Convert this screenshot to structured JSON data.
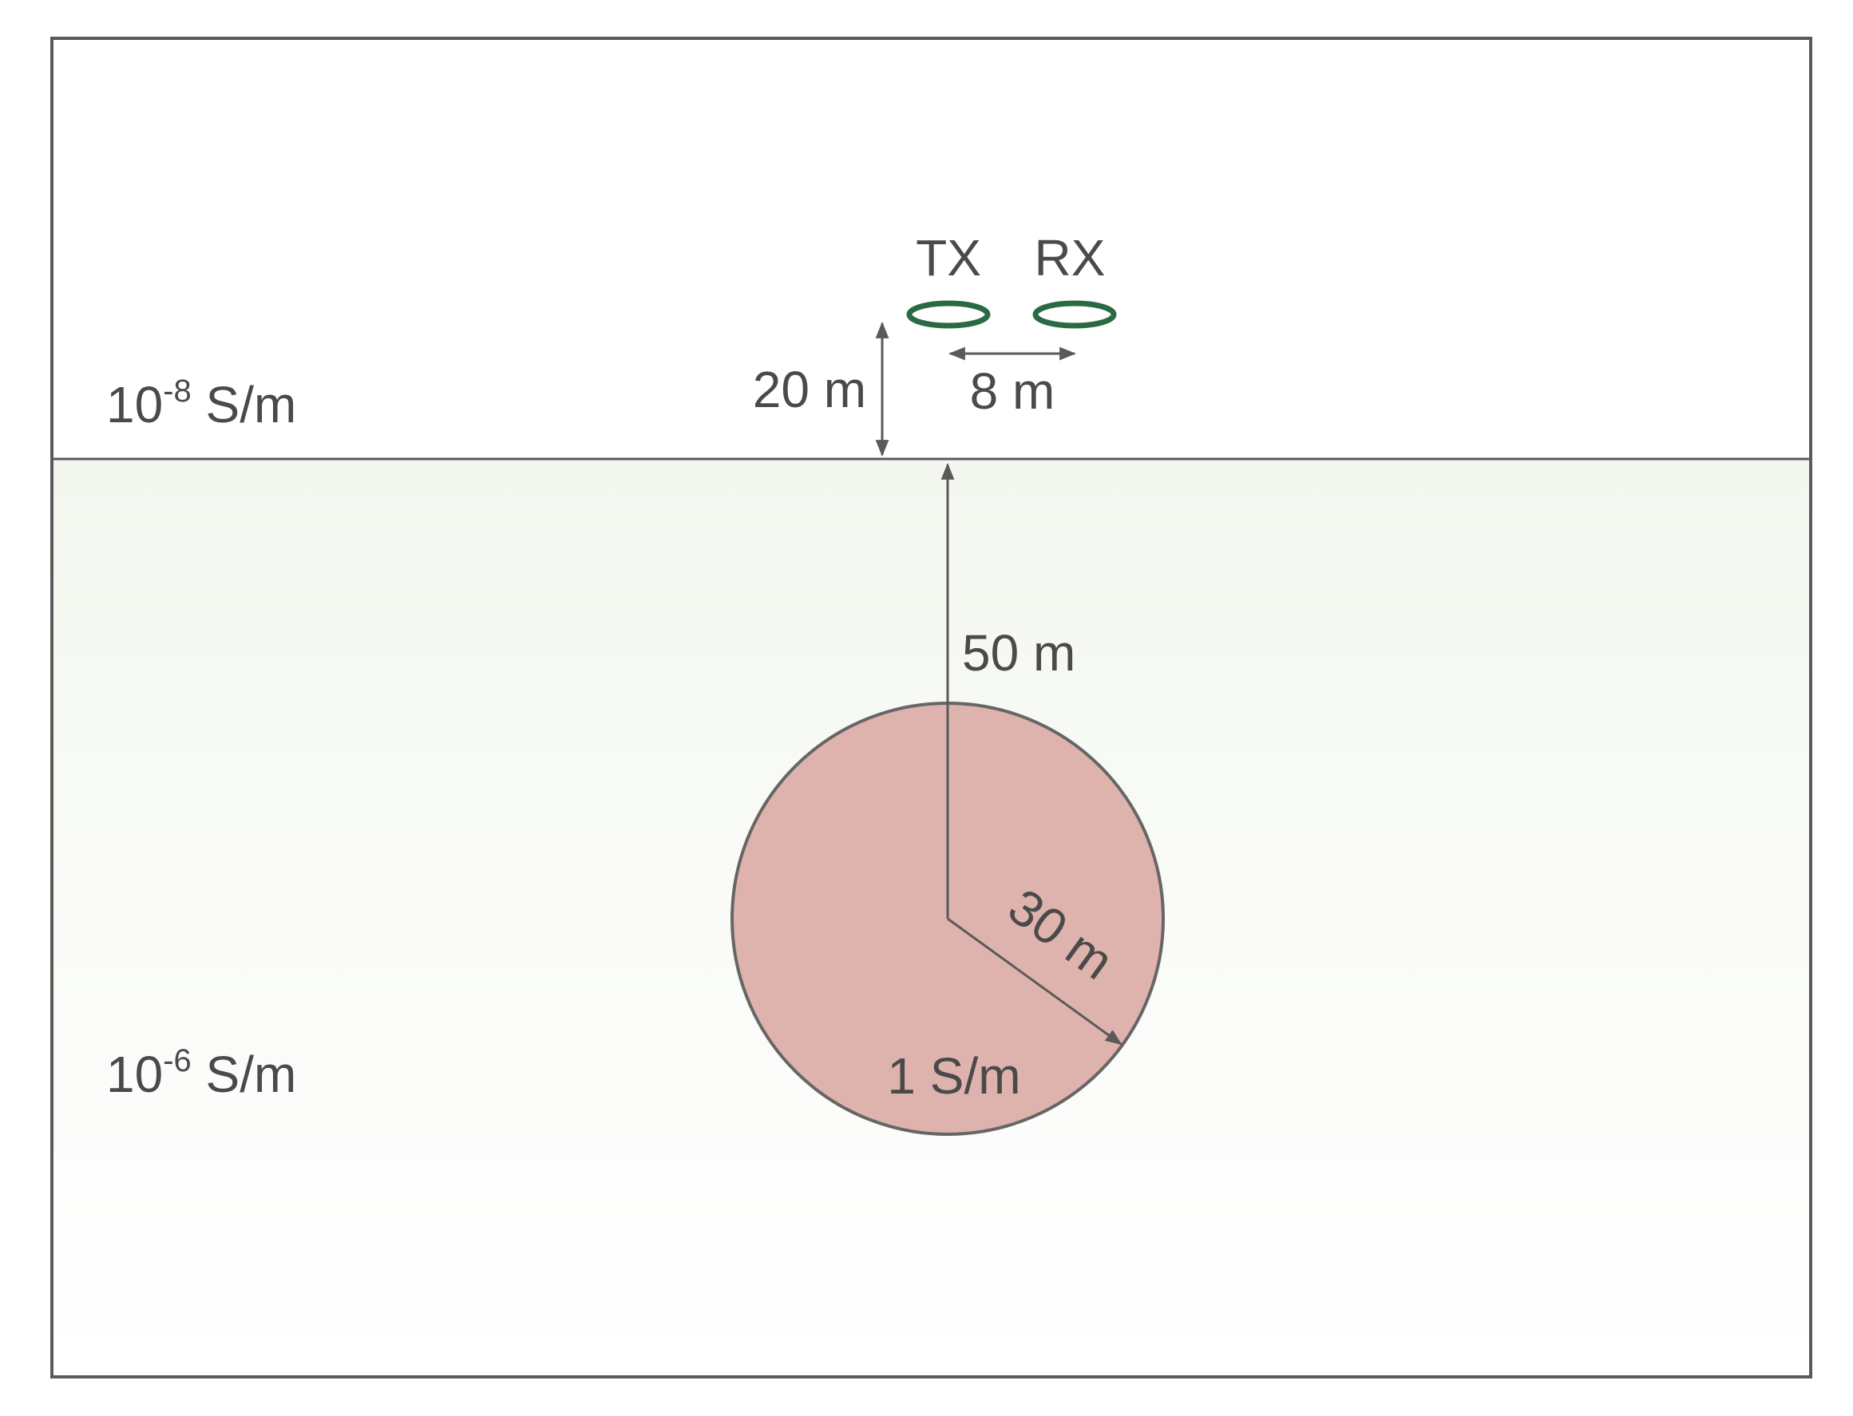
{
  "air": {
    "sigma_base": "10",
    "sigma_exp": "-8",
    "sigma_unit": " S/m"
  },
  "ground": {
    "sigma_base": "10",
    "sigma_exp": "-6",
    "sigma_unit": " S/m"
  },
  "sphere": {
    "sigma": "1 S/m",
    "radius_label": "30 m",
    "depth_label": "50 m"
  },
  "tx": {
    "label": "TX"
  },
  "rx": {
    "label": "RX"
  },
  "dimensions": {
    "height_label": "20 m",
    "separation_label": "8 m"
  },
  "colors": {
    "frame": "#5a5a5a",
    "ground_top": "#f4f7f0",
    "ground_bottom": "#ffffff",
    "sphere_fill": "#dfb3ad",
    "loop": "#2a6a42",
    "text": "#4a4a4a"
  }
}
